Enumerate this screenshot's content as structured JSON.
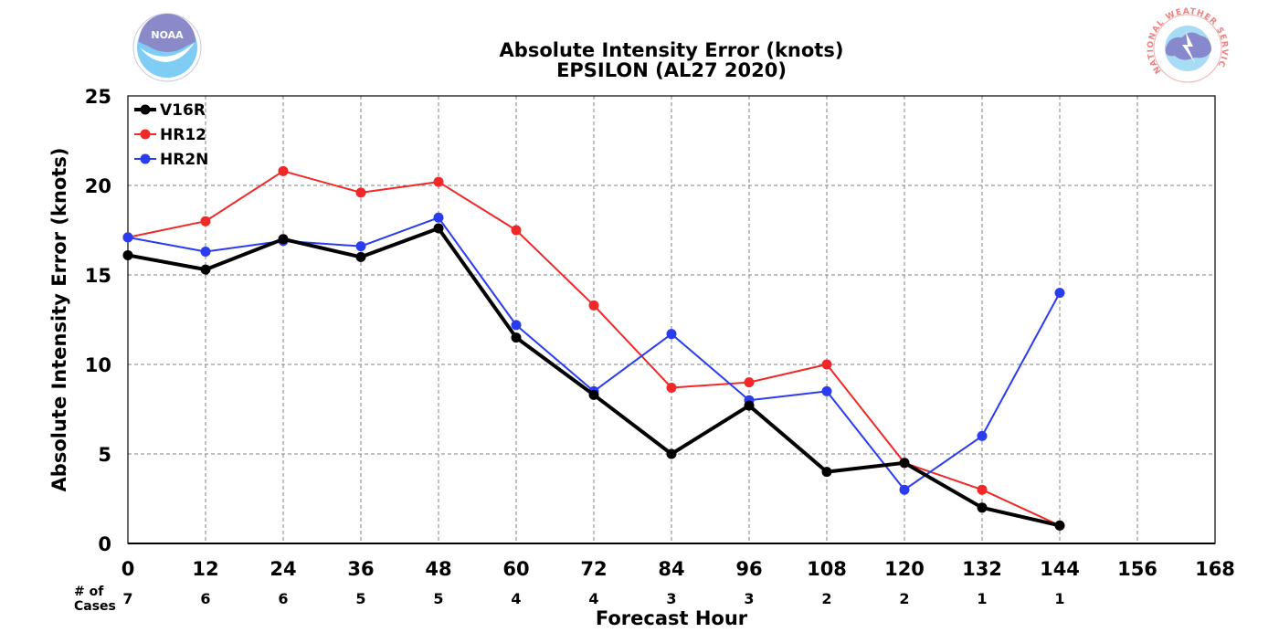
{
  "chart_data": {
    "type": "line",
    "title": "Absolute Intensity Error (knots)",
    "subtitle": "EPSILON (AL27 2020)",
    "xlabel": "Forecast Hour",
    "ylabel": "Absolute Intensity Error (knots)",
    "xlim": [
      0,
      168
    ],
    "ylim": [
      0,
      25
    ],
    "xticks": [
      0,
      12,
      24,
      36,
      48,
      60,
      72,
      84,
      96,
      108,
      120,
      132,
      144,
      156,
      168
    ],
    "yticks": [
      0,
      5,
      10,
      15,
      20,
      25
    ],
    "grid": true,
    "legend_position": "top-left",
    "cases_header": [
      "# of",
      "Cases"
    ],
    "cases": [
      {
        "x": 0,
        "n": "7"
      },
      {
        "x": 12,
        "n": "6"
      },
      {
        "x": 24,
        "n": "6"
      },
      {
        "x": 36,
        "n": "5"
      },
      {
        "x": 48,
        "n": "5"
      },
      {
        "x": 60,
        "n": "4"
      },
      {
        "x": 72,
        "n": "4"
      },
      {
        "x": 84,
        "n": "3"
      },
      {
        "x": 96,
        "n": "3"
      },
      {
        "x": 108,
        "n": "2"
      },
      {
        "x": 120,
        "n": "2"
      },
      {
        "x": 132,
        "n": "1"
      },
      {
        "x": 144,
        "n": "1"
      }
    ],
    "series": [
      {
        "name": "V16R",
        "color": "#000000",
        "x": [
          0,
          12,
          24,
          36,
          48,
          60,
          72,
          84,
          96,
          108,
          120,
          132,
          144
        ],
        "values": [
          16.1,
          15.3,
          17.0,
          16.0,
          17.6,
          11.5,
          8.3,
          5.0,
          7.7,
          4.0,
          4.5,
          2.0,
          1.0
        ]
      },
      {
        "name": "HR12",
        "color": "#f02828",
        "x": [
          0,
          12,
          24,
          36,
          48,
          60,
          72,
          84,
          96,
          108,
          120,
          132,
          144
        ],
        "values": [
          17.1,
          18.0,
          20.8,
          19.6,
          20.2,
          17.5,
          13.3,
          8.7,
          9.0,
          10.0,
          4.5,
          3.0,
          1.0
        ]
      },
      {
        "name": "HR2N",
        "color": "#2a3cf0",
        "x": [
          0,
          12,
          24,
          36,
          48,
          60,
          72,
          84,
          96,
          108,
          120,
          132,
          144
        ],
        "values": [
          17.1,
          16.3,
          16.9,
          16.6,
          18.2,
          12.2,
          8.5,
          11.7,
          8.0,
          8.5,
          3.0,
          6.0,
          14.0
        ]
      }
    ]
  },
  "logos": {
    "left": {
      "text": "NOAA",
      "color": "#7fcdf5",
      "accent": "#8888cc"
    },
    "right": {
      "text": "NATIONAL WEATHER SERVICE",
      "color": "#f08080",
      "accent": "#8888cc"
    }
  }
}
